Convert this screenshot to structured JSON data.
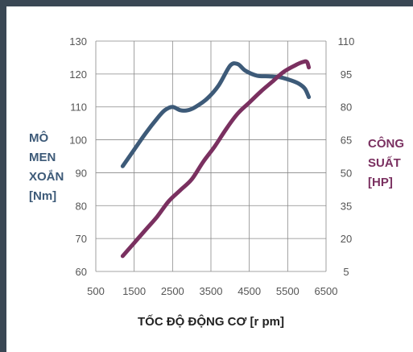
{
  "chart_data": {
    "type": "line",
    "xlabel": "TỐC ĐỘ ĐỘNG CƠ [r pm]",
    "ylabel_left": [
      "MÔ",
      "MEN",
      "XOẮN",
      "[Nm]"
    ],
    "ylabel_right": [
      "CÔNG",
      "SUẤT",
      "[HP]"
    ],
    "xlim": [
      500,
      6500
    ],
    "ylim_left": [
      60,
      130
    ],
    "ylim_right": [
      5,
      110
    ],
    "x_ticks": [
      500,
      1500,
      2500,
      3500,
      4500,
      5500,
      6500
    ],
    "y_left_ticks": [
      60,
      70,
      80,
      90,
      100,
      110,
      120,
      130
    ],
    "y_right_ticks": [
      5,
      20,
      35,
      50,
      65,
      80,
      95,
      110
    ],
    "grid": true,
    "series": [
      {
        "axis": "left",
        "color": "#3d5a78",
        "x": [
          1200,
          1500,
          1800,
          2100,
          2300,
          2500,
          2700,
          2900,
          3100,
          3400,
          3700,
          4000,
          4200,
          4400,
          4700,
          5000,
          5300,
          5600,
          5800,
          5950,
          6050
        ],
        "y": [
          92,
          97,
          102,
          106.5,
          109,
          110,
          109,
          109,
          110,
          112.5,
          116.5,
          122.5,
          123,
          121,
          119.5,
          119.3,
          119,
          118,
          117,
          115.5,
          113
        ]
      },
      {
        "axis": "right",
        "color": "#7a3060",
        "x": [
          1200,
          1500,
          1800,
          2100,
          2400,
          2700,
          3000,
          3300,
          3600,
          3900,
          4200,
          4500,
          4800,
          5100,
          5400,
          5700,
          5900,
          6000,
          6050
        ],
        "y": [
          12,
          18,
          24,
          30,
          37,
          42,
          47,
          55,
          62,
          70,
          77,
          82,
          87,
          91.5,
          96,
          99,
          100.5,
          100.5,
          98
        ]
      }
    ]
  }
}
